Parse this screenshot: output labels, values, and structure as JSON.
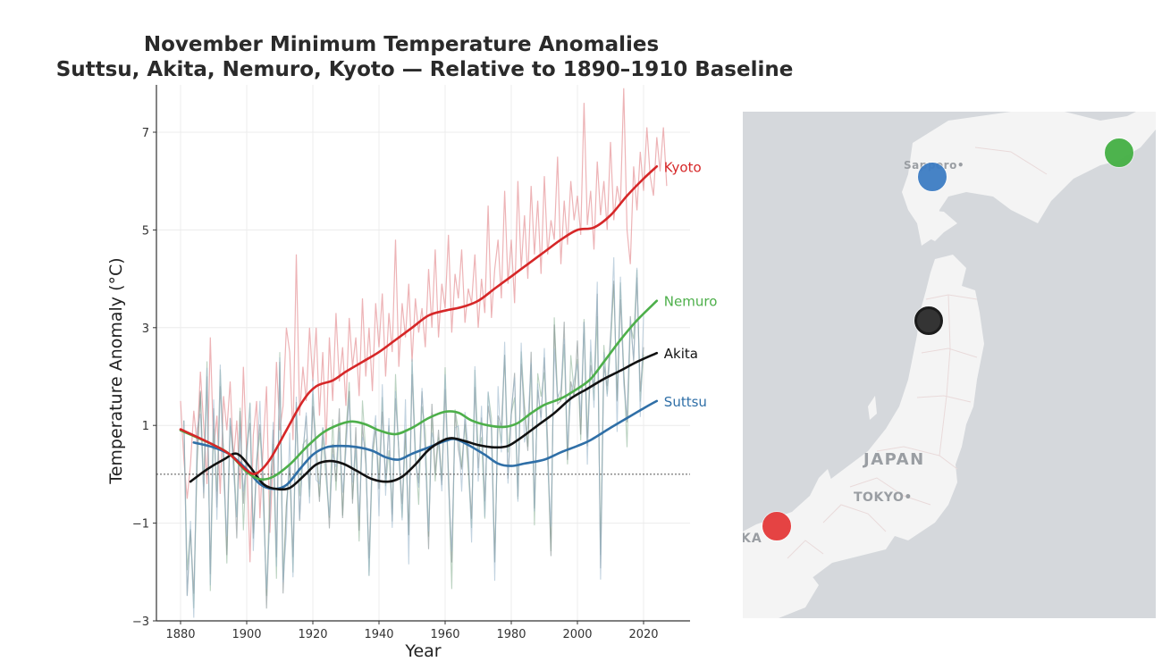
{
  "title": {
    "line1": "November Minimum Temperature Anomalies",
    "line2": "Suttsu, Akita, Nemuro, Kyoto — Relative to 1890–1910 Baseline"
  },
  "chart_data": {
    "type": "line",
    "title": "November Minimum Temperature Anomalies — Suttsu, Akita, Nemuro, Kyoto — Relative to 1890–1910 Baseline",
    "xlabel": "Year",
    "ylabel": "Temperature Anomaly (°C)",
    "xlim": [
      1873,
      2034
    ],
    "ylim": [
      -3,
      8
    ],
    "xticks": [
      1880,
      1900,
      1920,
      1940,
      1960,
      1980,
      2000,
      2020
    ],
    "yticks": [
      -3,
      -1,
      1,
      3,
      5,
      7
    ],
    "ytick_labels": [
      "−3",
      "−1",
      "1",
      "3",
      "5",
      "7"
    ],
    "grid": true,
    "baseline": 0,
    "legend": "inline-right",
    "series": [
      {
        "name": "Kyoto",
        "color": "#d62728",
        "smooth": [
          [
            1880,
            0.92
          ],
          [
            1890,
            0.6
          ],
          [
            1895,
            0.4
          ],
          [
            1900,
            0.08
          ],
          [
            1903,
            0.02
          ],
          [
            1907,
            0.3
          ],
          [
            1912,
            0.9
          ],
          [
            1917,
            1.5
          ],
          [
            1921,
            1.8
          ],
          [
            1926,
            1.92
          ],
          [
            1930,
            2.1
          ],
          [
            1935,
            2.3
          ],
          [
            1940,
            2.5
          ],
          [
            1945,
            2.75
          ],
          [
            1950,
            3.0
          ],
          [
            1955,
            3.25
          ],
          [
            1960,
            3.35
          ],
          [
            1965,
            3.42
          ],
          [
            1970,
            3.55
          ],
          [
            1975,
            3.8
          ],
          [
            1980,
            4.05
          ],
          [
            1985,
            4.3
          ],
          [
            1990,
            4.55
          ],
          [
            1995,
            4.8
          ],
          [
            2000,
            5.0
          ],
          [
            2005,
            5.05
          ],
          [
            2010,
            5.3
          ],
          [
            2015,
            5.7
          ],
          [
            2020,
            6.05
          ],
          [
            2024,
            6.3
          ]
        ],
        "raw_start": 1880,
        "raw": [
          1.5,
          0.3,
          -0.5,
          0.2,
          1.3,
          0.6,
          2.1,
          1.0,
          -0.2,
          2.8,
          0.5,
          1.2,
          -0.4,
          1.6,
          0.9,
          1.9,
          0.3,
          1.1,
          -0.3,
          2.2,
          0.4,
          -1.8,
          0.8,
          1.5,
          -0.9,
          0.6,
          1.8,
          -1.2,
          0.3,
          2.3,
          0.9,
          1.4,
          3.0,
          2.5,
          0.7,
          4.5,
          1.2,
          2.2,
          1.5,
          3.0,
          1.9,
          3.0,
          1.2,
          2.5,
          0.6,
          2.8,
          1.5,
          3.3,
          1.9,
          2.6,
          1.4,
          3.2,
          2.2,
          2.8,
          1.6,
          3.6,
          2.0,
          3.0,
          1.7,
          3.5,
          2.6,
          3.7,
          2.0,
          3.3,
          2.5,
          4.8,
          2.2,
          3.5,
          2.8,
          3.9,
          2.3,
          3.6,
          2.9,
          3.4,
          2.6,
          4.2,
          3.0,
          4.6,
          2.8,
          3.9,
          3.4,
          4.9,
          2.9,
          4.1,
          3.6,
          4.6,
          3.1,
          3.8,
          3.5,
          4.5,
          3.0,
          4.0,
          3.3,
          5.5,
          3.2,
          4.2,
          4.8,
          3.6,
          5.8,
          3.9,
          4.8,
          3.5,
          6.0,
          4.2,
          5.3,
          4.0,
          5.9,
          4.5,
          5.6,
          4.1,
          6.1,
          4.5,
          5.2,
          4.8,
          6.5,
          4.3,
          5.6,
          4.7,
          6.0,
          5.2,
          5.7,
          4.9,
          7.6,
          5.1,
          5.8,
          4.6,
          6.4,
          5.3,
          6.0,
          5.0,
          6.8,
          5.2,
          5.9,
          5.5,
          7.9,
          5.0,
          4.3,
          6.3,
          5.4,
          6.6,
          5.8,
          7.1,
          6.1,
          5.7,
          6.9,
          6.2,
          7.1,
          5.9
        ]
      },
      {
        "name": "Nemuro",
        "color": "#4daf4a",
        "smooth": [
          [
            1880,
            0.9
          ],
          [
            1890,
            0.6
          ],
          [
            1895,
            0.4
          ],
          [
            1900,
            0.05
          ],
          [
            1904,
            -0.1
          ],
          [
            1908,
            -0.05
          ],
          [
            1913,
            0.2
          ],
          [
            1918,
            0.55
          ],
          [
            1923,
            0.85
          ],
          [
            1928,
            1.02
          ],
          [
            1932,
            1.08
          ],
          [
            1936,
            1.02
          ],
          [
            1940,
            0.9
          ],
          [
            1945,
            0.82
          ],
          [
            1950,
            0.95
          ],
          [
            1955,
            1.15
          ],
          [
            1960,
            1.28
          ],
          [
            1964,
            1.26
          ],
          [
            1968,
            1.1
          ],
          [
            1973,
            1.0
          ],
          [
            1978,
            0.97
          ],
          [
            1982,
            1.05
          ],
          [
            1986,
            1.25
          ],
          [
            1990,
            1.42
          ],
          [
            1995,
            1.55
          ],
          [
            2000,
            1.75
          ],
          [
            2004,
            1.95
          ],
          [
            2008,
            2.3
          ],
          [
            2013,
            2.75
          ],
          [
            2018,
            3.15
          ],
          [
            2024,
            3.55
          ]
        ]
      },
      {
        "name": "Akita",
        "color": "#111111",
        "smooth": [
          [
            1883,
            -0.15
          ],
          [
            1888,
            0.1
          ],
          [
            1893,
            0.3
          ],
          [
            1897,
            0.42
          ],
          [
            1901,
            0.15
          ],
          [
            1905,
            -0.2
          ],
          [
            1909,
            -0.3
          ],
          [
            1913,
            -0.28
          ],
          [
            1917,
            -0.05
          ],
          [
            1921,
            0.2
          ],
          [
            1925,
            0.27
          ],
          [
            1929,
            0.22
          ],
          [
            1933,
            0.08
          ],
          [
            1938,
            -0.1
          ],
          [
            1943,
            -0.15
          ],
          [
            1947,
            -0.05
          ],
          [
            1951,
            0.2
          ],
          [
            1955,
            0.5
          ],
          [
            1959,
            0.68
          ],
          [
            1962,
            0.74
          ],
          [
            1966,
            0.68
          ],
          [
            1970,
            0.6
          ],
          [
            1975,
            0.55
          ],
          [
            1979,
            0.58
          ],
          [
            1983,
            0.75
          ],
          [
            1988,
            1.0
          ],
          [
            1993,
            1.25
          ],
          [
            1998,
            1.55
          ],
          [
            2003,
            1.75
          ],
          [
            2008,
            1.95
          ],
          [
            2013,
            2.12
          ],
          [
            2018,
            2.3
          ],
          [
            2024,
            2.48
          ]
        ]
      },
      {
        "name": "Suttsu",
        "color": "#2f6fa7",
        "smooth": [
          [
            1884,
            0.65
          ],
          [
            1890,
            0.55
          ],
          [
            1895,
            0.4
          ],
          [
            1900,
            0.1
          ],
          [
            1904,
            -0.2
          ],
          [
            1908,
            -0.3
          ],
          [
            1912,
            -0.22
          ],
          [
            1916,
            0.1
          ],
          [
            1920,
            0.4
          ],
          [
            1924,
            0.55
          ],
          [
            1928,
            0.58
          ],
          [
            1933,
            0.56
          ],
          [
            1938,
            0.48
          ],
          [
            1942,
            0.35
          ],
          [
            1946,
            0.3
          ],
          [
            1950,
            0.42
          ],
          [
            1955,
            0.55
          ],
          [
            1960,
            0.68
          ],
          [
            1963,
            0.72
          ],
          [
            1967,
            0.6
          ],
          [
            1972,
            0.4
          ],
          [
            1976,
            0.22
          ],
          [
            1980,
            0.17
          ],
          [
            1984,
            0.22
          ],
          [
            1990,
            0.3
          ],
          [
            1995,
            0.45
          ],
          [
            2000,
            0.58
          ],
          [
            2004,
            0.7
          ],
          [
            2010,
            0.95
          ],
          [
            2015,
            1.15
          ],
          [
            2020,
            1.35
          ],
          [
            2024,
            1.5
          ]
        ]
      }
    ],
    "raw_others": {
      "start": 1881,
      "values": [
        1.1,
        -2.3,
        -1.3,
        -2.5,
        0.5,
        1.6,
        -0.6,
        2.2,
        -2.1,
        1.2,
        -0.5,
        1.8,
        0.3,
        -1.5,
        1.2,
        0.2,
        -1.2,
        1.4,
        -0.8,
        0.6,
        1.2,
        -1.5,
        0.3,
        1.2,
        -0.2,
        -2.8,
        -0.5,
        0.8,
        -1.8,
        2.5,
        -2.5,
        -0.8,
        0.4,
        -1.7,
        1.3,
        -0.8,
        0.5,
        1.0,
        -0.2,
        1.5,
        0.3,
        -0.5,
        1.1,
        0.1,
        -1.1,
        0.8,
        -0.3,
        1.3,
        -0.7,
        0.6,
        1.6,
        -0.4,
        0.9,
        -1.3,
        1.2,
        0.2,
        -1.9,
        0.6,
        1.0,
        -0.5,
        1.4,
        0.0,
        0.8,
        -0.9,
        1.7,
        0.3,
        -0.6,
        1.1,
        -1.4,
        2.0,
        0.5,
        -0.3,
        1.6,
        0.7,
        -1.6,
        1.3,
        0.2,
        0.9,
        -0.4,
        1.9,
        0.1,
        -2.0,
        1.4,
        0.6,
        -0.1,
        1.2,
        0.4,
        -1.1,
        1.8,
        0.3,
        1.0,
        -0.6,
        1.6,
        0.8,
        -1.9,
        1.4,
        0.9,
        2.3,
        0.1,
        1.2,
        1.9,
        -0.3,
        2.3,
        1.1,
        0.6,
        2.6,
        -0.9,
        1.8,
        1.3,
        2.2,
        0.7,
        -1.5,
        2.9,
        1.4,
        1.7,
        3.0,
        0.2,
        2.1,
        1.5,
        2.6,
        1.0,
        3.1,
        0.4,
        2.4,
        1.8,
        3.5,
        -1.8,
        2.3,
        1.6,
        2.9,
        4.1,
        1.3,
        3.6,
        2.2,
        0.9,
        3.2,
        2.5,
        3.9,
        1.6,
        2.8
      ]
    }
  },
  "map": {
    "labels": {
      "sapporo": "Sapporo•",
      "japan": "JAPAN",
      "tokyo": "TOKYO•",
      "osaka_partial": "KA"
    },
    "markers": [
      {
        "station": "Suttsu",
        "color": "#3d7dc4"
      },
      {
        "station": "Nemuro",
        "color": "#45b045"
      },
      {
        "station": "Akita",
        "color": "#2a2a2a"
      },
      {
        "station": "Kyoto",
        "color": "#e53a3a"
      }
    ]
  }
}
